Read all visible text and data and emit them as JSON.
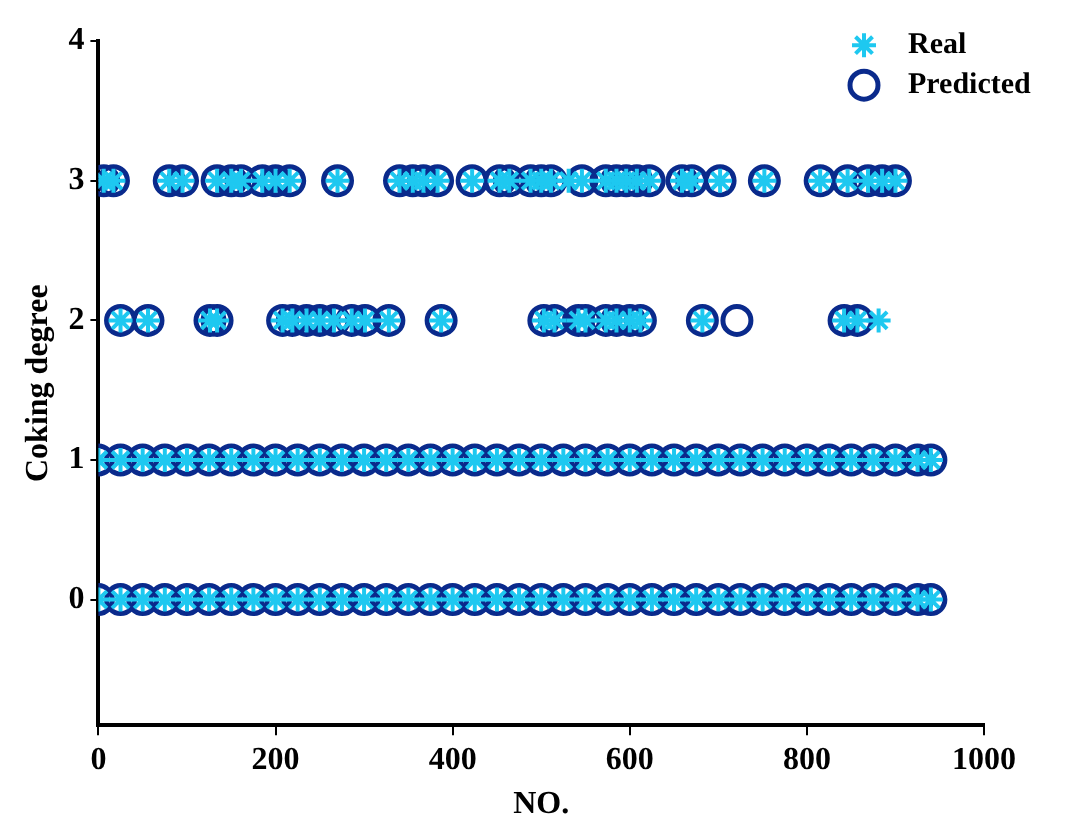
{
  "chart_data": {
    "type": "scatter",
    "xlabel": "NO.",
    "ylabel": "Coking degree",
    "xlim": [
      0,
      1000
    ],
    "xticks": [
      0,
      200,
      400,
      600,
      800,
      1000
    ],
    "ylim": [
      -0.9,
      4
    ],
    "yticks": [
      0,
      1,
      2,
      3,
      4
    ],
    "grid": false,
    "legend": "top right",
    "series": [
      {
        "name": "Real",
        "color": "#1ec8f0",
        "marker": "cross",
        "x": [
          0,
          25,
          50,
          75,
          100,
          125,
          150,
          175,
          200,
          225,
          250,
          275,
          300,
          325,
          350,
          375,
          400,
          425,
          450,
          475,
          500,
          525,
          550,
          575,
          600,
          625,
          650,
          675,
          700,
          725,
          750,
          775,
          800,
          825,
          850,
          875,
          900,
          925,
          940,
          0,
          25,
          50,
          75,
          100,
          125,
          150,
          175,
          200,
          225,
          250,
          275,
          300,
          325,
          350,
          375,
          400,
          425,
          450,
          475,
          500,
          525,
          550,
          575,
          600,
          625,
          650,
          675,
          700,
          725,
          750,
          775,
          800,
          825,
          850,
          875,
          900,
          925,
          940,
          25,
          56,
          126,
          134,
          208,
          219,
          235,
          250,
          266,
          286,
          301,
          328,
          387,
          503,
          515,
          542,
          550,
          573,
          585,
          600,
          612,
          682,
          842,
          857,
          881,
          6,
          17,
          80,
          95,
          134,
          150,
          161,
          185,
          200,
          216,
          270,
          340,
          355,
          367,
          383,
          422,
          453,
          464,
          488,
          500,
          511,
          531,
          546,
          573,
          585,
          596,
          608,
          622,
          659,
          670,
          702,
          752,
          815,
          846,
          869,
          885,
          900
        ],
        "values": [
          0,
          0,
          0,
          0,
          0,
          0,
          0,
          0,
          0,
          0,
          0,
          0,
          0,
          0,
          0,
          0,
          0,
          0,
          0,
          0,
          0,
          0,
          0,
          0,
          0,
          0,
          0,
          0,
          0,
          0,
          0,
          0,
          0,
          0,
          0,
          0,
          0,
          0,
          0,
          1,
          1,
          1,
          1,
          1,
          1,
          1,
          1,
          1,
          1,
          1,
          1,
          1,
          1,
          1,
          1,
          1,
          1,
          1,
          1,
          1,
          1,
          1,
          1,
          1,
          1,
          1,
          1,
          1,
          1,
          1,
          1,
          1,
          1,
          1,
          1,
          1,
          1,
          1,
          2,
          2,
          2,
          2,
          2,
          2,
          2,
          2,
          2,
          2,
          2,
          2,
          2,
          2,
          2,
          2,
          2,
          2,
          2,
          2,
          2,
          2,
          2,
          2,
          2,
          3,
          3,
          3,
          3,
          3,
          3,
          3,
          3,
          3,
          3,
          3,
          3,
          3,
          3,
          3,
          3,
          3,
          3,
          3,
          3,
          3,
          3,
          3,
          3,
          3,
          3,
          3,
          3,
          3,
          3,
          3,
          3,
          3,
          3,
          3,
          3,
          3
        ]
      },
      {
        "name": "Predicted",
        "color": "#0a2a8c",
        "marker": "circle",
        "x": [
          0,
          25,
          50,
          75,
          100,
          125,
          150,
          175,
          200,
          225,
          250,
          275,
          300,
          325,
          350,
          375,
          400,
          425,
          450,
          475,
          500,
          525,
          550,
          575,
          600,
          625,
          650,
          675,
          700,
          725,
          750,
          775,
          800,
          825,
          850,
          875,
          900,
          925,
          940,
          0,
          25,
          50,
          75,
          100,
          125,
          150,
          175,
          200,
          225,
          250,
          275,
          300,
          325,
          350,
          375,
          400,
          425,
          450,
          475,
          500,
          525,
          550,
          575,
          600,
          625,
          650,
          675,
          700,
          725,
          750,
          775,
          800,
          825,
          850,
          875,
          900,
          925,
          940,
          25,
          56,
          126,
          134,
          208,
          219,
          235,
          250,
          266,
          286,
          301,
          328,
          387,
          503,
          515,
          542,
          550,
          573,
          585,
          600,
          612,
          682,
          721,
          842,
          857,
          6,
          17,
          80,
          95,
          134,
          150,
          161,
          185,
          200,
          216,
          270,
          340,
          355,
          367,
          383,
          422,
          453,
          464,
          488,
          500,
          511,
          546,
          573,
          585,
          596,
          608,
          622,
          659,
          670,
          702,
          752,
          815,
          846,
          869,
          885,
          900
        ],
        "values": [
          0,
          0,
          0,
          0,
          0,
          0,
          0,
          0,
          0,
          0,
          0,
          0,
          0,
          0,
          0,
          0,
          0,
          0,
          0,
          0,
          0,
          0,
          0,
          0,
          0,
          0,
          0,
          0,
          0,
          0,
          0,
          0,
          0,
          0,
          0,
          0,
          0,
          0,
          0,
          1,
          1,
          1,
          1,
          1,
          1,
          1,
          1,
          1,
          1,
          1,
          1,
          1,
          1,
          1,
          1,
          1,
          1,
          1,
          1,
          1,
          1,
          1,
          1,
          1,
          1,
          1,
          1,
          1,
          1,
          1,
          1,
          1,
          1,
          1,
          1,
          1,
          1,
          1,
          2,
          2,
          2,
          2,
          2,
          2,
          2,
          2,
          2,
          2,
          2,
          2,
          2,
          2,
          2,
          2,
          2,
          2,
          2,
          2,
          2,
          2,
          2,
          2,
          2,
          3,
          3,
          3,
          3,
          3,
          3,
          3,
          3,
          3,
          3,
          3,
          3,
          3,
          3,
          3,
          3,
          3,
          3,
          3,
          3,
          3,
          3,
          3,
          3,
          3,
          3,
          3,
          3,
          3,
          3,
          3,
          3,
          3,
          3,
          3,
          3
        ]
      }
    ]
  }
}
